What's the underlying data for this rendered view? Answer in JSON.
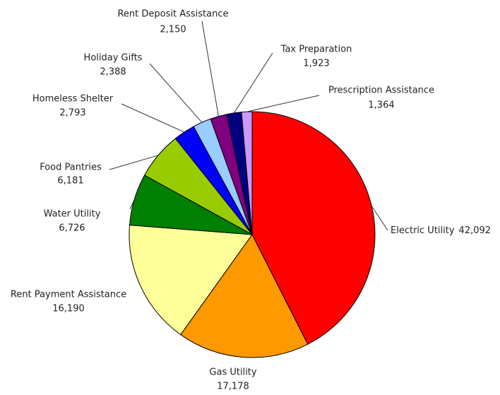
{
  "chart_data": {
    "type": "pie",
    "categories": [
      "Electric Utility",
      "Gas Utility",
      "Rent Payment Assistance",
      "Water Utility",
      "Food Pantries",
      "Homeless Shelter",
      "Holiday Gifts",
      "Rent Deposit Assistance",
      "Tax Preparation",
      "Prescription Assistance"
    ],
    "values": [
      42092,
      17178,
      16190,
      6726,
      6181,
      2793,
      2388,
      2150,
      1923,
      1364
    ],
    "value_labels": [
      "42,092",
      "17,178",
      "16,190",
      "6,726",
      "6,181",
      "2,793",
      "2,388",
      "2,150",
      "1,923",
      "1,364"
    ],
    "colors": [
      "#ff0000",
      "#ff9900",
      "#ffff99",
      "#008000",
      "#99cc00",
      "#0000ff",
      "#99ccff",
      "#800080",
      "#000080",
      "#cc99ff"
    ]
  }
}
